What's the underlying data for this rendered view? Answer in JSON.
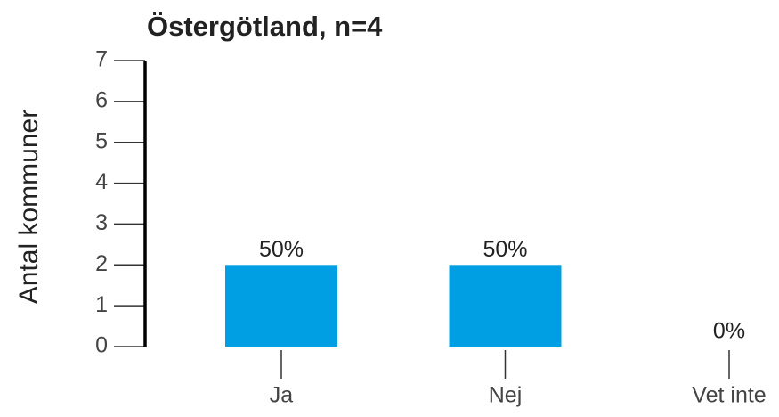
{
  "chart_data": {
    "type": "bar",
    "title": "Östergötland, n=4",
    "y_label": "Antal kommuner",
    "categories": [
      "Ja",
      "Nej",
      "Vet inte"
    ],
    "values": [
      2,
      2,
      0
    ],
    "value_labels": [
      "50%",
      "50%",
      "0%"
    ],
    "color": "#009fe3",
    "ylim": [
      0,
      7
    ],
    "yticks": [
      0,
      1,
      2,
      3,
      4,
      5,
      6,
      7
    ]
  }
}
